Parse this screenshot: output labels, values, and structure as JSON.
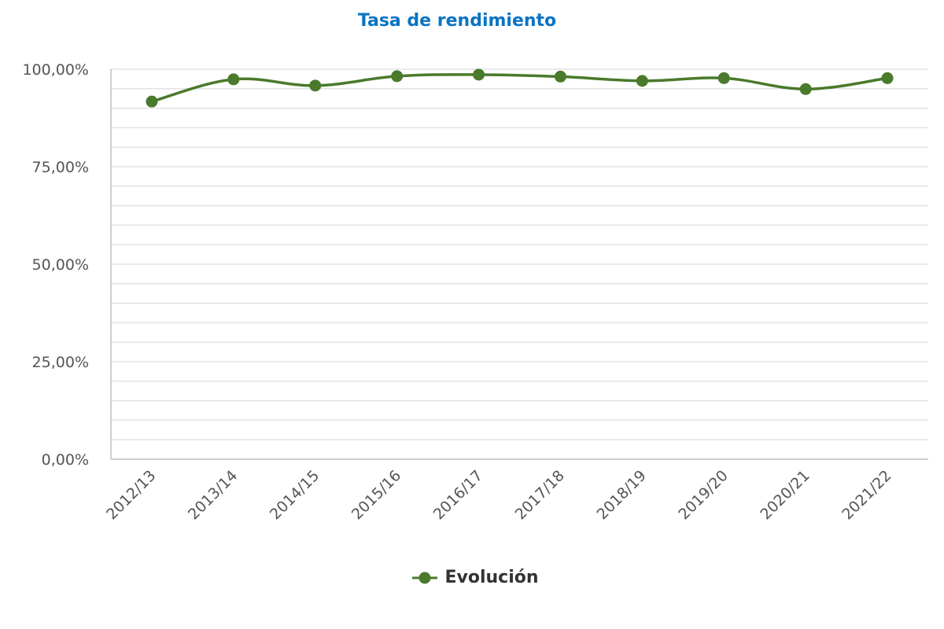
{
  "chart_data": {
    "type": "line",
    "title": "Tasa de rendimiento",
    "xlabel": "",
    "ylabel": "",
    "categories": [
      "2012/13",
      "2013/14",
      "2014/15",
      "2015/16",
      "2016/17",
      "2017/18",
      "2018/19",
      "2019/20",
      "2020/21",
      "2021/22"
    ],
    "series": [
      {
        "name": "Evolución",
        "color": "#4a7a2c",
        "values": [
          91.7,
          97.4,
          95.8,
          98.2,
          98.6,
          98.1,
          97.0,
          97.7,
          94.9,
          97.7
        ]
      }
    ],
    "ylim": [
      0,
      100
    ],
    "yticks": [
      "0,00%",
      "25,00%",
      "50,00%",
      "75,00%",
      "100,00%"
    ],
    "grid": true,
    "legend": "bottom"
  }
}
